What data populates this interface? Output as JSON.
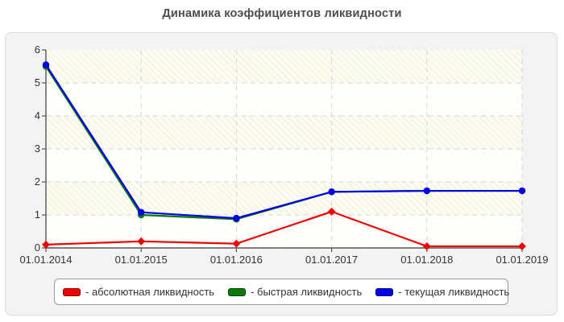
{
  "chart_data": {
    "type": "line",
    "title": "Динамика коэффициентов ликвидности",
    "categories": [
      "01.01.2014",
      "01.01.2015",
      "01.01.2016",
      "01.01.2017",
      "01.01.2018",
      "01.01.2019"
    ],
    "y_ticks": [
      0,
      1,
      2,
      3,
      4,
      5,
      6
    ],
    "ylim": [
      0,
      6
    ],
    "grid": {
      "horizontal": "dashed",
      "vertical": "dashed"
    },
    "legend_position": "bottom",
    "series": [
      {
        "id": "absolute-liquidity",
        "name": "абсолютная ликвидность",
        "legend": "- абсолютная ликвидность",
        "color": "#ee0000",
        "marker": "diamond",
        "values": [
          0.1,
          0.2,
          0.13,
          1.1,
          0.05,
          0.05
        ]
      },
      {
        "id": "quick-liquidity",
        "name": "быстрая ликвидность",
        "legend": "- быстрая ликвидность",
        "color": "#0a7a0a",
        "marker": "circle",
        "values": [
          5.5,
          1.0,
          0.87,
          1.7,
          1.73,
          1.73
        ]
      },
      {
        "id": "current-liquidity",
        "name": "текущая ликвидность",
        "legend": "- текущая ликвидность",
        "color": "#0000e8",
        "marker": "circle",
        "values": [
          5.55,
          1.08,
          0.9,
          1.7,
          1.73,
          1.73
        ]
      }
    ],
    "colors": {
      "axis": "#555555",
      "gridline": "#d6d6d6",
      "panel_background": "#f3f3f3",
      "plot_background": "#fbfbe9",
      "title_text": "#4d4d4d",
      "tick_text": "#333333",
      "legend_border": "#999999"
    }
  }
}
